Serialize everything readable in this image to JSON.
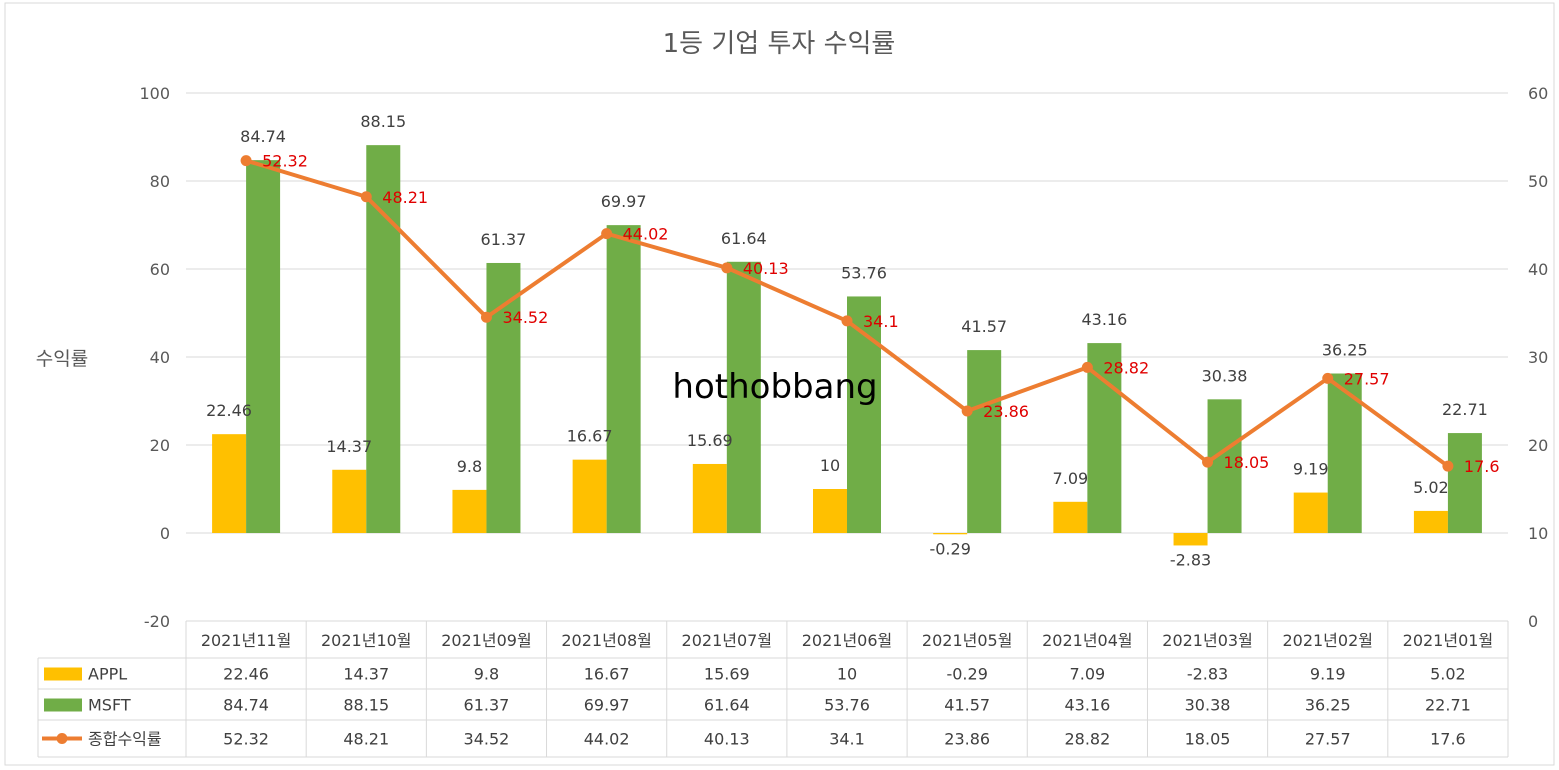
{
  "chart_data": {
    "type": "bar",
    "title": "1등 기업 투자 수익률",
    "ylabel": "수익률",
    "ylim": [
      -20,
      100
    ],
    "y_ticks": [
      "-20",
      "0",
      "20",
      "40",
      "60",
      "80",
      "100"
    ],
    "y2lim": [
      0,
      60
    ],
    "y2_ticks": [
      "0",
      "10",
      "20",
      "30",
      "40",
      "50",
      "60"
    ],
    "grid": true,
    "legend": "data-table",
    "categories": [
      "2021년11월",
      "2021년10월",
      "2021년09월",
      "2021년08월",
      "2021년07월",
      "2021년06월",
      "2021년05월",
      "2021년04월",
      "2021년03월",
      "2021년02월",
      "2021년01월"
    ],
    "series": [
      {
        "name": "APPL",
        "type": "bar",
        "axis": "left",
        "color": "#FFC000",
        "values": [
          22.46,
          14.37,
          9.8,
          16.67,
          15.69,
          10,
          -0.29,
          7.09,
          -2.83,
          9.19,
          5.02
        ]
      },
      {
        "name": "MSFT",
        "type": "bar",
        "axis": "left",
        "color": "#70AD47",
        "values": [
          84.74,
          88.15,
          61.37,
          69.97,
          61.64,
          53.76,
          41.57,
          43.16,
          30.38,
          36.25,
          22.71
        ]
      },
      {
        "name": "종합수익률",
        "type": "line",
        "axis": "right",
        "color": "#ED7D31",
        "label_color": "#E00000",
        "values": [
          52.32,
          48.21,
          34.52,
          44.02,
          40.13,
          34.1,
          23.86,
          28.82,
          18.05,
          27.57,
          17.6
        ]
      }
    ],
    "watermark": "hothobbang"
  }
}
